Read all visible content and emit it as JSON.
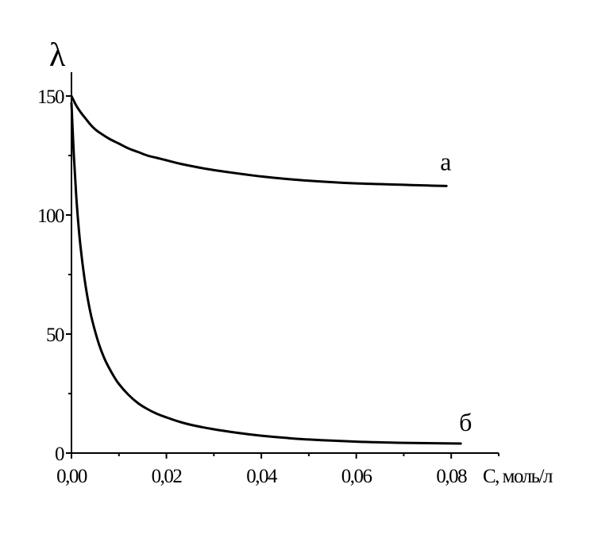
{
  "chart_data": {
    "type": "line",
    "title": "",
    "ylabel": "λ",
    "xlabel": "С, моль/л",
    "xlim": [
      0,
      0.09
    ],
    "ylim": [
      0,
      160
    ],
    "x_ticks": [
      0,
      0.02,
      0.04,
      0.06,
      0.08
    ],
    "x_tick_labels": [
      "0,00",
      "0,02",
      "0,04",
      "0,06",
      "0,08"
    ],
    "y_ticks": [
      0,
      50,
      100,
      150
    ],
    "y_tick_labels": [
      "0",
      "50",
      "100",
      "150"
    ],
    "grid": false,
    "legend": "none",
    "series": [
      {
        "name": "а",
        "x": [
          0,
          0.001,
          0.002,
          0.003,
          0.004,
          0.005,
          0.006,
          0.008,
          0.01,
          0.012,
          0.014,
          0.016,
          0.018,
          0.02,
          0.023,
          0.026,
          0.029,
          0.032,
          0.036,
          0.04,
          0.045,
          0.05,
          0.055,
          0.06,
          0.065,
          0.07,
          0.075,
          0.079
        ],
        "values": [
          150,
          146,
          143,
          140.5,
          138,
          136,
          134.5,
          132,
          130,
          128,
          126.5,
          125,
          124,
          123,
          121.5,
          120.3,
          119.2,
          118.3,
          117.2,
          116.2,
          115.2,
          114.4,
          113.8,
          113.3,
          113,
          112.7,
          112.4,
          112.2
        ]
      },
      {
        "name": "б",
        "x": [
          0,
          0.0005,
          0.001,
          0.0015,
          0.002,
          0.003,
          0.004,
          0.005,
          0.006,
          0.007,
          0.008,
          0.009,
          0.01,
          0.012,
          0.014,
          0.016,
          0.018,
          0.02,
          0.023,
          0.026,
          0.03,
          0.035,
          0.04,
          0.045,
          0.05,
          0.06,
          0.07,
          0.082
        ],
        "values": [
          147,
          125,
          108,
          95,
          85,
          70,
          59,
          51,
          44.5,
          39.5,
          35.5,
          32,
          29,
          24.5,
          21,
          18.5,
          16.5,
          15,
          13,
          11.5,
          10,
          8.5,
          7.3,
          6.4,
          5.7,
          4.8,
          4.3,
          4.0
        ]
      }
    ]
  }
}
